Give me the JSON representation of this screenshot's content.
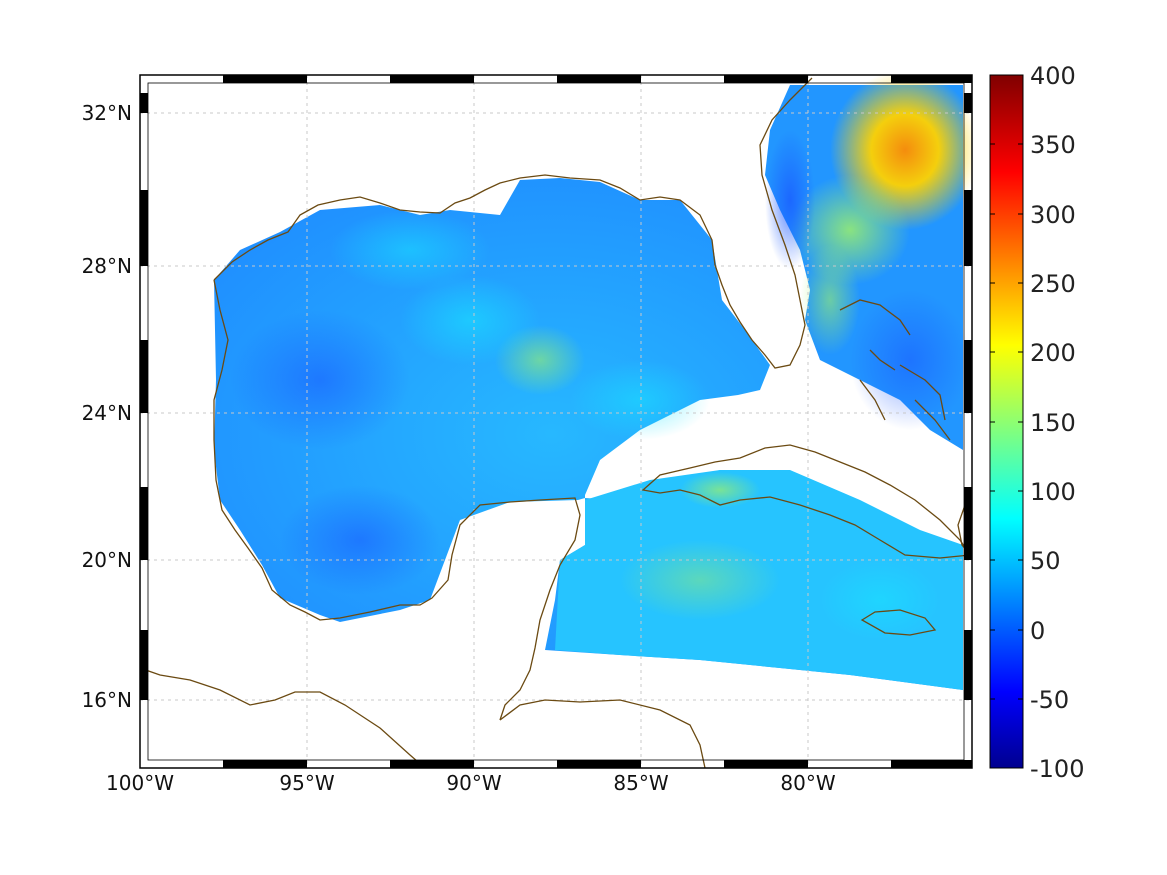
{
  "map": {
    "lon_ticks": [
      "100°W",
      "95°W",
      "90°W",
      "85°W",
      "80°W"
    ],
    "lat_ticks": [
      "32°N",
      "28°N",
      "24°N",
      "20°N",
      "16°N"
    ],
    "grid": true,
    "extent": {
      "lon": [
        -100,
        -75
      ],
      "lat": [
        14.5,
        32.8
      ]
    },
    "coastline_color": "#6b4a12"
  },
  "colorbar": {
    "ticks": [
      "400",
      "350",
      "300",
      "250",
      "200",
      "150",
      "100",
      "50",
      "0",
      "-50",
      "-100"
    ],
    "range": [
      -100,
      400
    ],
    "colormap": "jet"
  }
}
